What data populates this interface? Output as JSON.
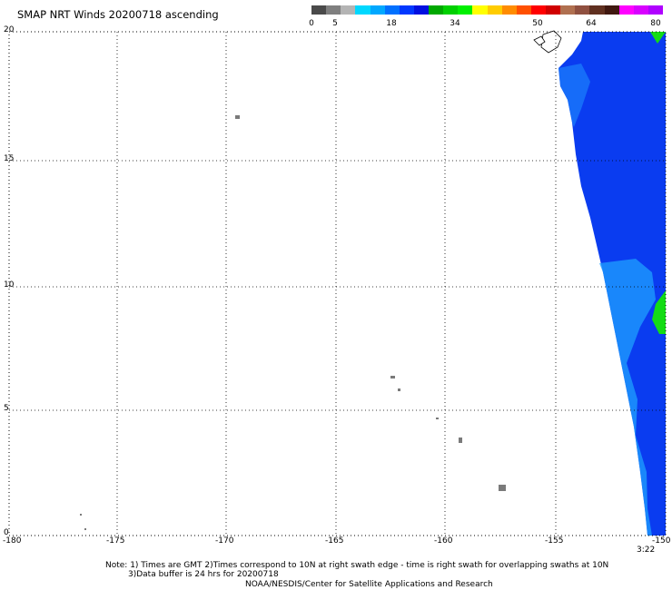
{
  "title": "SMAP NRT Winds 20200718 ascending",
  "color_scale": {
    "labels": [
      "0",
      "5",
      "18",
      "34",
      "50",
      "64",
      "80"
    ],
    "colors": [
      "#4a4a4a",
      "#7f7f7f",
      "#b4b4b4",
      "#00d8ff",
      "#00a8ff",
      "#0070ff",
      "#0038ff",
      "#0010e0",
      "#00a800",
      "#00d000",
      "#00f000",
      "#ffff00",
      "#ffcc00",
      "#ff8c00",
      "#ff5000",
      "#ff0000",
      "#d00000",
      "#b07050",
      "#905040",
      "#603020",
      "#401810",
      "#ff00ff",
      "#d800ff",
      "#b000ff"
    ]
  },
  "map": {
    "lon_range": [
      -180,
      -150
    ],
    "lat_range": [
      0,
      20
    ],
    "x_ticks": [
      "-180",
      "-175",
      "-170",
      "-165",
      "-160",
      "-155",
      "-150"
    ],
    "y_ticks": [
      "20",
      "15",
      "10",
      "5",
      "0"
    ],
    "time_label": "3:22",
    "colors": {
      "swath_blue": "#0a3cf0",
      "swath_light": "#1fa0ff",
      "wind_green": "#14dc14",
      "land": "#7a7a7a"
    }
  },
  "notes": {
    "line1": "Note: 1) Times are GMT 2)Times correspond to 10N at right swath edge - time is right swath for overlapping swaths at 10N",
    "line2": "3)Data buffer is 24 hrs for 20200718",
    "line3": "NOAA/NESDIS/Center for Satellite Applications and Research"
  }
}
